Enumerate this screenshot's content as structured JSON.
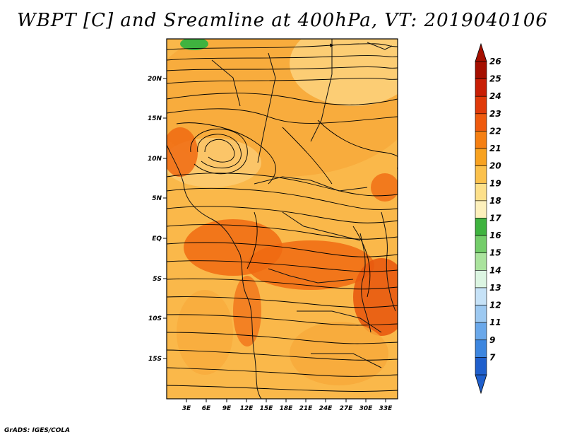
{
  "map": {
    "title": "WBPT [C] and Sreamline at 400hPa, VT: 2019040106",
    "credit": "GrADS: IGES/COLA",
    "variable": "WBPT [C]",
    "overlay": "Streamline",
    "level": "400hPa",
    "valid_time": "2019040106",
    "lat_labels": [
      "20N",
      "15N",
      "10N",
      "5N",
      "EQ",
      "5S",
      "10S",
      "15S"
    ],
    "lon_labels": [
      "3E",
      "6E",
      "9E",
      "12E",
      "15E",
      "18E",
      "21E",
      "24E",
      "27E",
      "30E",
      "33E"
    ],
    "colorbar": {
      "labels": [
        "26",
        "25",
        "24",
        "23",
        "22",
        "21",
        "20",
        "19",
        "18",
        "17",
        "16",
        "15",
        "14",
        "13",
        "12",
        "11",
        "9",
        "7"
      ],
      "colors": [
        "#a50f00",
        "#c81e05",
        "#e03a0a",
        "#ef5a0e",
        "#f57f12",
        "#f8a220",
        "#fbc14c",
        "#fde08a",
        "#fdf0bc",
        "#3fb33f",
        "#74cd6a",
        "#aae39d",
        "#dcf5e2",
        "#c6e2f7",
        "#9dc9f1",
        "#6aa8ea",
        "#3d86df",
        "#1f5fcc"
      ]
    },
    "legend_colors": {
      "deep_orange": "#f06a12",
      "orange": "#f5952a",
      "light_orange": "#fab84a",
      "yellow_orange": "#fcd07a",
      "green": "#3fb33f"
    }
  }
}
